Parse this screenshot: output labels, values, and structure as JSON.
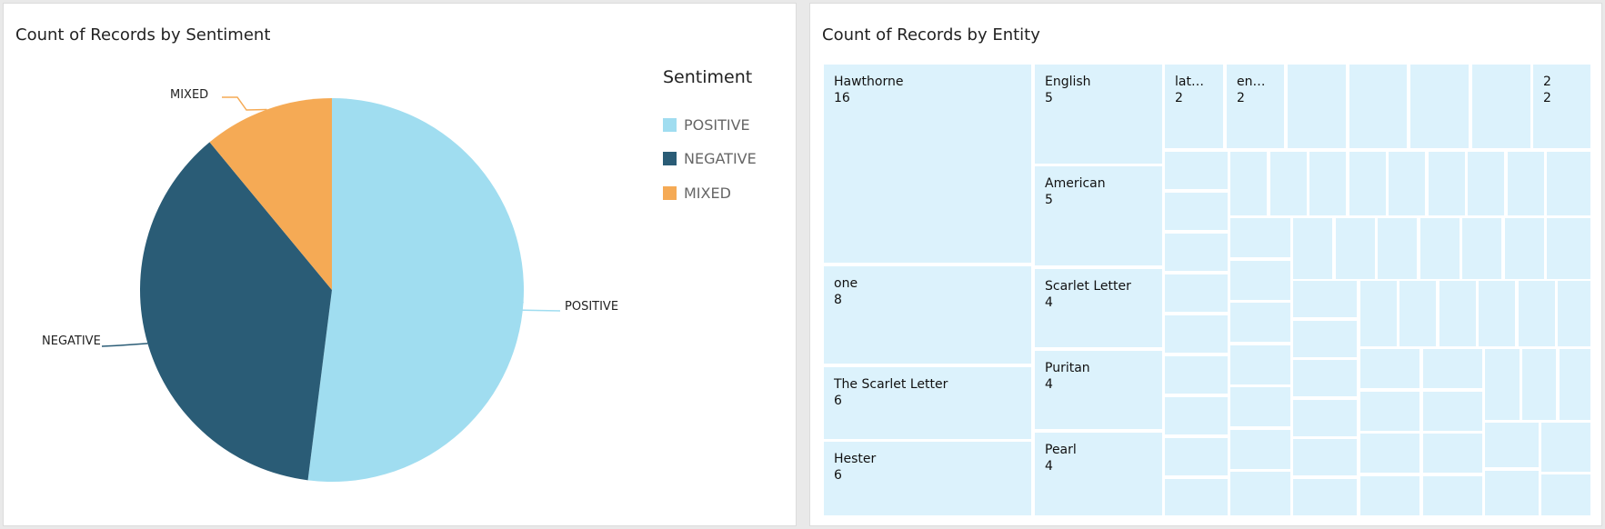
{
  "chart_data": [
    {
      "type": "pie",
      "title": "Count of Records by Sentiment",
      "legend": {
        "title": "Sentiment",
        "placement": "right"
      },
      "slices": [
        {
          "label": "POSITIVE",
          "value": 52,
          "color": "#a0ddf0"
        },
        {
          "label": "NEGATIVE",
          "value": 37,
          "color": "#2a5c76"
        },
        {
          "label": "MIXED",
          "value": 11,
          "color": "#f5aa55"
        }
      ],
      "value_unit": "percent (estimated)"
    },
    {
      "type": "treemap",
      "title": "Count of Records by Entity",
      "tile_color": "#dcf2fc",
      "items": [
        {
          "label": "Hawthorne",
          "value": "16"
        },
        {
          "label": "one",
          "value": "8"
        },
        {
          "label": "The Scarlet Letter",
          "value": "6"
        },
        {
          "label": "Hester",
          "value": "6"
        },
        {
          "label": "English",
          "value": "5"
        },
        {
          "label": "American",
          "value": "5"
        },
        {
          "label": "Scarlet Letter",
          "value": "4"
        },
        {
          "label": "Puritan",
          "value": "4"
        },
        {
          "label": "Pearl",
          "value": "4"
        },
        {
          "label": "lat…",
          "value": "2"
        },
        {
          "label": "en…",
          "value": "2"
        },
        {
          "label": "2",
          "value": "2"
        }
      ]
    }
  ]
}
